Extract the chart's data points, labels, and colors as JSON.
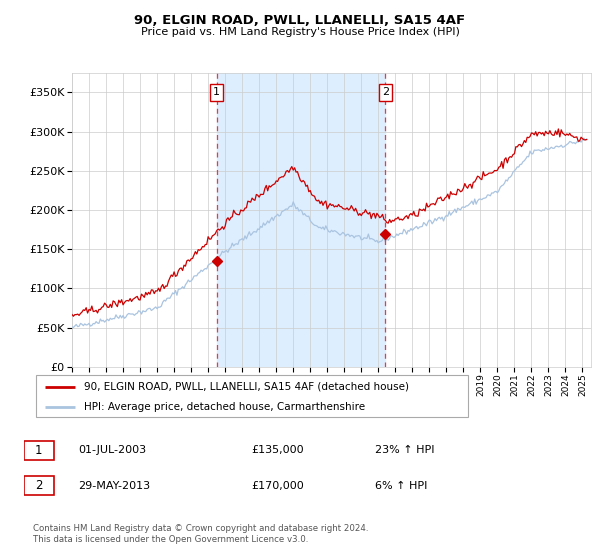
{
  "title_line1": "90, ELGIN ROAD, PWLL, LLANELLI, SA15 4AF",
  "title_line2": "Price paid vs. HM Land Registry's House Price Index (HPI)",
  "background_color": "#ffffff",
  "plot_bg_color": "#ffffff",
  "shade_color": "#ddeeff",
  "grid_color": "#cccccc",
  "hpi_line_color": "#aac4e0",
  "price_line_color": "#cc0000",
  "marker_color": "#cc0000",
  "vline_color": "#ff3333",
  "purchase1_date_num": 2003.5,
  "purchase1_price": 135000,
  "purchase2_date_num": 2013.42,
  "purchase2_price": 170000,
  "legend1": "90, ELGIN ROAD, PWLL, LLANELLI, SA15 4AF (detached house)",
  "legend2": "HPI: Average price, detached house, Carmarthenshire",
  "table_row1": [
    "1",
    "01-JUL-2003",
    "£135,000",
    "23% ↑ HPI"
  ],
  "table_row2": [
    "2",
    "29-MAY-2013",
    "£170,000",
    "6% ↑ HPI"
  ],
  "footer": "Contains HM Land Registry data © Crown copyright and database right 2024.\nThis data is licensed under the Open Government Licence v3.0.",
  "ylim": [
    0,
    375000
  ],
  "yticks": [
    0,
    50000,
    100000,
    150000,
    200000,
    250000,
    300000,
    350000
  ],
  "ytick_labels": [
    "£0",
    "£50K",
    "£100K",
    "£150K",
    "£200K",
    "£250K",
    "£300K",
    "£350K"
  ],
  "xmin": 1995.0,
  "xmax": 2025.5
}
